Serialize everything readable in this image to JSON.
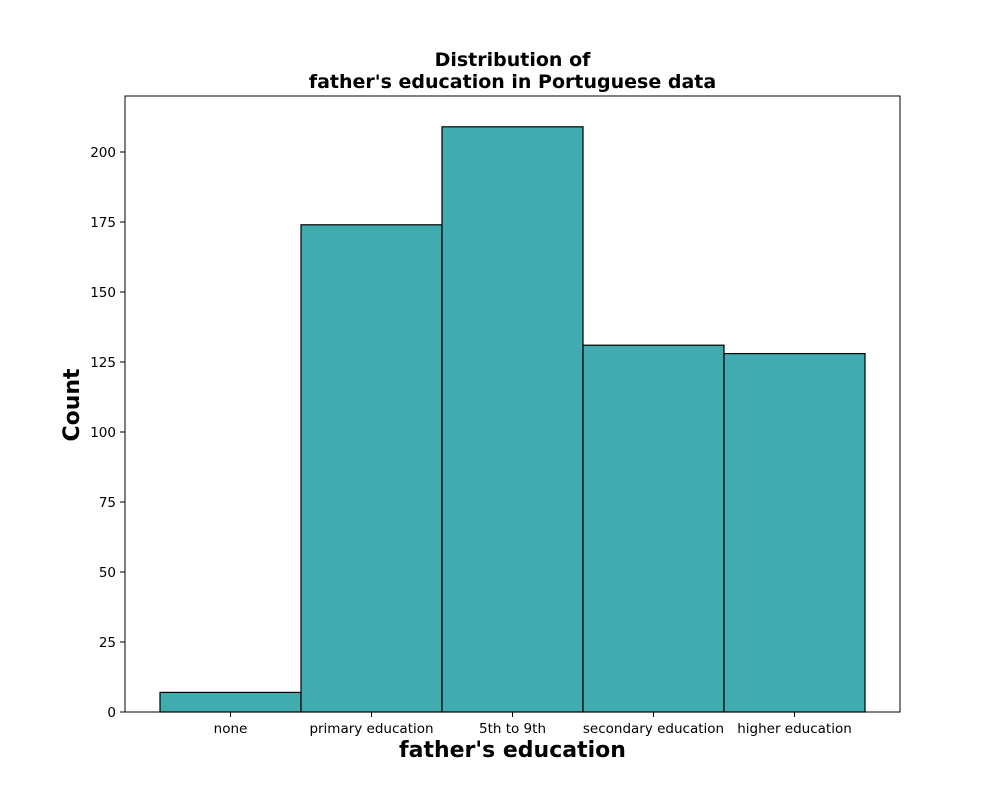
{
  "chart_data": {
    "type": "bar",
    "title_lines": [
      "Distribution of",
      "father's education in Portuguese data"
    ],
    "xlabel": "father's education",
    "ylabel": "Count",
    "categories": [
      "none",
      "primary education",
      "5th to 9th",
      "secondary education",
      "higher education"
    ],
    "values": [
      7,
      174,
      209,
      131,
      128
    ],
    "ylim": [
      0,
      220
    ],
    "yticks": [
      0,
      25,
      50,
      75,
      100,
      125,
      150,
      175,
      200
    ],
    "grid": false,
    "bar_color": "#40acaf",
    "edge_color": "#000000"
  }
}
